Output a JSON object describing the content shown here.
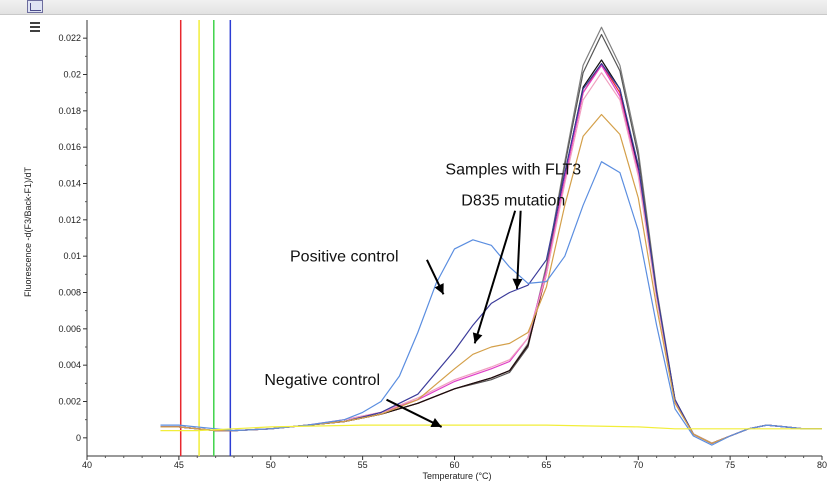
{
  "chart_data": {
    "type": "line",
    "xlabel": "Temperature (°C)",
    "ylabel": "Fluorescence -d(F3/Back-F1)/dT",
    "xlim": [
      40,
      80
    ],
    "ylim": [
      -0.001,
      0.023
    ],
    "x_ticks": [
      "40",
      "45",
      "50",
      "55",
      "60",
      "65",
      "70",
      "75",
      "80"
    ],
    "y_ticks": [
      "0",
      "0.002",
      "0.004",
      "0.006",
      "0.008",
      "0.01",
      "0.012",
      "0.014",
      "0.016",
      "0.018",
      "0.02",
      "0.022"
    ],
    "grid": false,
    "vertical_markers": [
      {
        "x": 45.1,
        "color": "#e8272e"
      },
      {
        "x": 46.1,
        "color": "#f2ee3a"
      },
      {
        "x": 46.9,
        "color": "#40d34a"
      },
      {
        "x": 47.8,
        "color": "#2c3dd4"
      }
    ],
    "annotations": [
      {
        "text": "Samples with FLT3",
        "x": 63.2,
        "y": 0.0145
      },
      {
        "text": "D835 mutation",
        "x": 63.2,
        "y": 0.0128
      },
      {
        "text": "Positive control",
        "x": 54.0,
        "y": 0.0097
      },
      {
        "text": "Negative control",
        "x": 52.8,
        "y": 0.0029
      }
    ],
    "arrows": [
      {
        "from": [
          58.5,
          0.0098
        ],
        "to": [
          59.4,
          0.0079
        ]
      },
      {
        "from": [
          63.6,
          0.0125
        ],
        "to": [
          63.4,
          0.0082
        ]
      },
      {
        "from": [
          63.3,
          0.0125
        ],
        "to": [
          61.1,
          0.0052
        ]
      },
      {
        "from": [
          56.3,
          0.0021
        ],
        "to": [
          59.3,
          0.0006
        ]
      }
    ],
    "series": [
      {
        "color": "#808080",
        "x": [
          44,
          45,
          47,
          48,
          50,
          52,
          54,
          56,
          58,
          60,
          62,
          63,
          64,
          65,
          66,
          67,
          68,
          69,
          70,
          71,
          72,
          73,
          74,
          75,
          76,
          77,
          78,
          79,
          80
        ],
        "y": [
          0.0006,
          0.0006,
          0.0004,
          0.0004,
          0.0005,
          0.0007,
          0.0009,
          0.0013,
          0.0019,
          0.0027,
          0.0033,
          0.0037,
          0.0052,
          0.0095,
          0.0152,
          0.0205,
          0.0226,
          0.0205,
          0.0158,
          0.0082,
          0.0021,
          0.0002,
          -0.0003,
          0.0001,
          0.0005,
          0.0007,
          0.0006,
          0.0005,
          0.0005
        ]
      },
      {
        "color": "#555555",
        "x": [
          44,
          45,
          47,
          48,
          50,
          52,
          54,
          56,
          58,
          60,
          62,
          63,
          64,
          65,
          66,
          67,
          68,
          69,
          70,
          71,
          72,
          73,
          74,
          75,
          76,
          77,
          78,
          79,
          80
        ],
        "y": [
          0.0006,
          0.0006,
          0.0004,
          0.0004,
          0.0005,
          0.0007,
          0.0009,
          0.0013,
          0.0019,
          0.0027,
          0.0032,
          0.0036,
          0.005,
          0.0093,
          0.015,
          0.0201,
          0.0222,
          0.0202,
          0.0155,
          0.008,
          0.0021,
          0.0002,
          -0.0003,
          0.0001,
          0.0005,
          0.0007,
          0.0006,
          0.0005,
          0.0005
        ]
      },
      {
        "color": "#e8272e",
        "x": [
          44,
          45,
          47,
          48,
          50,
          52,
          54,
          56,
          58,
          60,
          62,
          63,
          64,
          65,
          66,
          67,
          68,
          69,
          70,
          71,
          72,
          73,
          74,
          75,
          76,
          77,
          78,
          79,
          80
        ],
        "y": [
          0.0006,
          0.0006,
          0.0004,
          0.0004,
          0.0005,
          0.0007,
          0.0009,
          0.0013,
          0.0019,
          0.0027,
          0.0033,
          0.0037,
          0.0051,
          0.009,
          0.0143,
          0.019,
          0.0206,
          0.019,
          0.0147,
          0.0078,
          0.002,
          0.0002,
          -0.0003,
          0.0001,
          0.0005,
          0.0007,
          0.0006,
          0.0005,
          0.0005
        ]
      },
      {
        "color": "#111111",
        "x": [
          44,
          45,
          47,
          48,
          50,
          52,
          54,
          56,
          58,
          60,
          62,
          63,
          64,
          65,
          66,
          67,
          68,
          69,
          70,
          71,
          72,
          73,
          74,
          75,
          76,
          77,
          78,
          79,
          80
        ],
        "y": [
          0.0006,
          0.0006,
          0.0004,
          0.0004,
          0.0005,
          0.0007,
          0.0009,
          0.0013,
          0.0019,
          0.0027,
          0.0033,
          0.0037,
          0.0051,
          0.0091,
          0.0145,
          0.0193,
          0.0208,
          0.0192,
          0.0148,
          0.0079,
          0.002,
          0.0002,
          -0.0003,
          0.0001,
          0.0005,
          0.0007,
          0.0006,
          0.0005,
          0.0005
        ]
      },
      {
        "color": "#e040c8",
        "x": [
          44,
          45,
          47,
          48,
          50,
          52,
          54,
          56,
          58,
          60,
          62,
          63,
          64,
          65,
          66,
          67,
          68,
          69,
          70,
          71,
          72,
          73,
          74,
          75,
          76,
          77,
          78,
          79,
          80
        ],
        "y": [
          0.0006,
          0.0006,
          0.0004,
          0.0004,
          0.0005,
          0.0007,
          0.001,
          0.0014,
          0.0021,
          0.0031,
          0.0038,
          0.0042,
          0.0055,
          0.0092,
          0.0143,
          0.019,
          0.0205,
          0.0188,
          0.0146,
          0.0078,
          0.002,
          0.0002,
          -0.0003,
          0.0001,
          0.0005,
          0.0007,
          0.0006,
          0.0005,
          0.0005
        ]
      },
      {
        "color": "#f0a0c0",
        "x": [
          44,
          45,
          47,
          48,
          50,
          52,
          54,
          56,
          58,
          60,
          62,
          63,
          64,
          65,
          66,
          67,
          68,
          69,
          70,
          71,
          72,
          73,
          74,
          75,
          76,
          77,
          78,
          79,
          80
        ],
        "y": [
          0.0006,
          0.0006,
          0.0004,
          0.0004,
          0.0005,
          0.0007,
          0.001,
          0.0014,
          0.0022,
          0.0032,
          0.0039,
          0.0043,
          0.0055,
          0.009,
          0.014,
          0.0186,
          0.0201,
          0.0186,
          0.0144,
          0.0077,
          0.002,
          0.0002,
          -0.0003,
          0.0001,
          0.0005,
          0.0007,
          0.0006,
          0.0005,
          0.0005
        ]
      },
      {
        "color": "#3b3b9a",
        "x": [
          44,
          45,
          47,
          48,
          50,
          52,
          54,
          56,
          58,
          60,
          61,
          62,
          63,
          64,
          65,
          66,
          67,
          68,
          69,
          70,
          71,
          72,
          73,
          74,
          75,
          76,
          77,
          78,
          79,
          80
        ],
        "y": [
          0.0006,
          0.0006,
          0.0004,
          0.0004,
          0.0005,
          0.0007,
          0.0009,
          0.0014,
          0.0024,
          0.0048,
          0.0062,
          0.0074,
          0.008,
          0.0084,
          0.0098,
          0.0146,
          0.0192,
          0.0206,
          0.0192,
          0.015,
          0.008,
          0.0021,
          0.0002,
          -0.0003,
          0.0001,
          0.0005,
          0.0007,
          0.0006,
          0.0005,
          0.0005
        ]
      },
      {
        "color": "#d4a04a",
        "x": [
          44,
          45,
          47,
          48,
          50,
          52,
          54,
          56,
          58,
          60,
          61,
          62,
          63,
          64,
          65,
          66,
          67,
          68,
          69,
          70,
          71,
          72,
          73,
          74,
          75,
          76,
          77,
          78,
          79,
          80
        ],
        "y": [
          0.0006,
          0.0006,
          0.0004,
          0.0004,
          0.0005,
          0.0007,
          0.0009,
          0.0013,
          0.0021,
          0.0038,
          0.0046,
          0.005,
          0.0052,
          0.0058,
          0.0083,
          0.0128,
          0.0166,
          0.0178,
          0.0167,
          0.0132,
          0.0072,
          0.0019,
          0.0002,
          -0.0003,
          0.0001,
          0.0005,
          0.0007,
          0.0006,
          0.0005,
          0.0005
        ]
      },
      {
        "color": "#5b8ee0",
        "x": [
          44,
          45,
          47,
          48,
          50,
          52,
          54,
          55,
          56,
          57,
          58,
          59,
          60,
          61,
          62,
          63,
          64,
          65,
          66,
          67,
          68,
          69,
          70,
          71,
          72,
          73,
          74,
          75,
          76,
          77,
          78,
          79,
          80
        ],
        "y": [
          0.0007,
          0.0007,
          0.0005,
          0.0004,
          0.0005,
          0.0007,
          0.001,
          0.0014,
          0.002,
          0.0034,
          0.0058,
          0.0085,
          0.0104,
          0.0109,
          0.0106,
          0.0094,
          0.0085,
          0.0086,
          0.01,
          0.0128,
          0.0152,
          0.0146,
          0.0114,
          0.0062,
          0.0016,
          0.0001,
          -0.0004,
          0.0001,
          0.0005,
          0.0007,
          0.0006,
          0.0005,
          0.0005
        ]
      },
      {
        "color": "#f2ee3a",
        "x": [
          44,
          46,
          50,
          55,
          60,
          65,
          70,
          72,
          80
        ],
        "y": [
          0.0004,
          0.0004,
          0.0006,
          0.0007,
          0.0007,
          0.0007,
          0.0006,
          0.0005,
          0.0005
        ]
      }
    ]
  }
}
